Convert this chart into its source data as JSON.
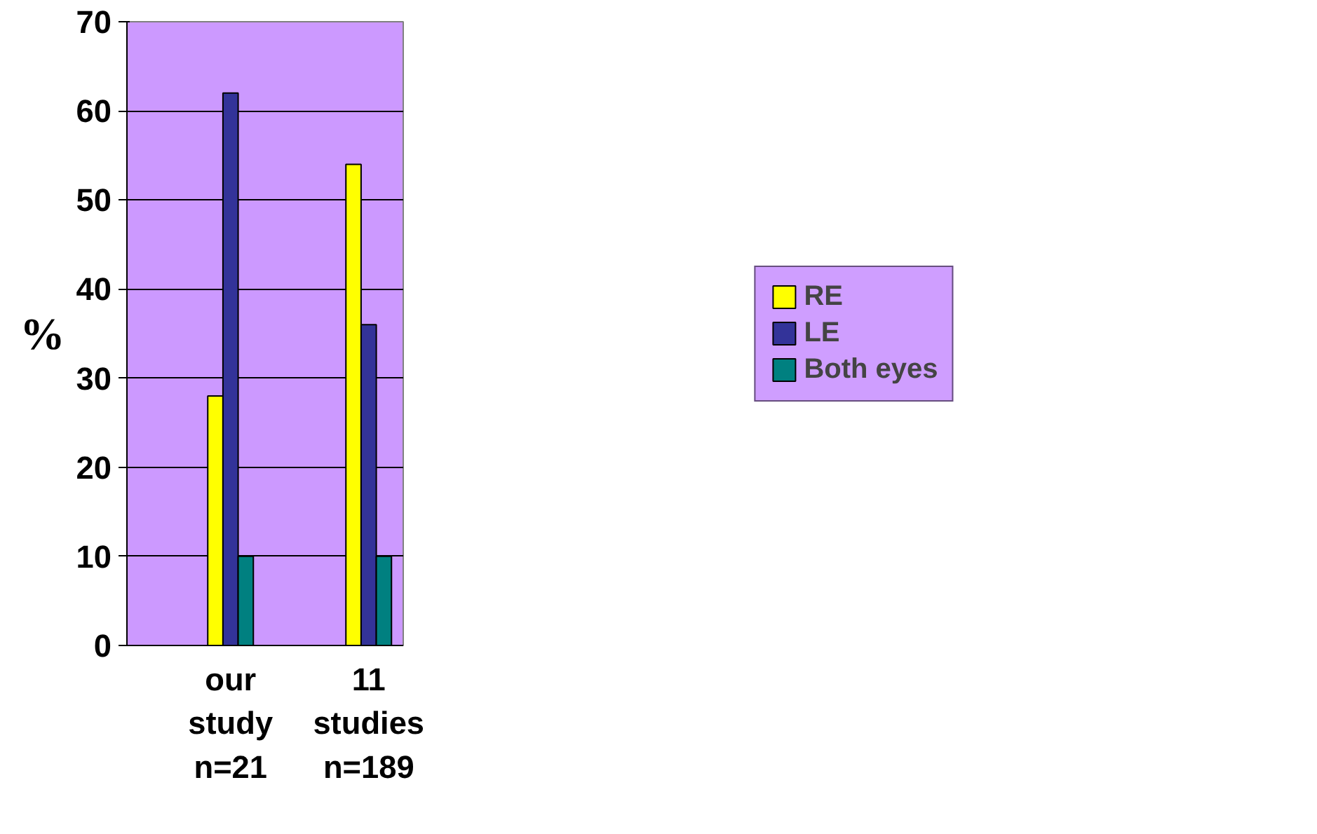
{
  "chart_data": {
    "type": "bar",
    "ylabel": "%",
    "categories": [
      null,
      "our\nstudy\nn=21",
      null,
      "11\nstudies\nn=189"
    ],
    "series": [
      {
        "name": "RE",
        "color": "#ffff00",
        "values": [
          null,
          28,
          null,
          54
        ]
      },
      {
        "name": "LE",
        "color": "#333399",
        "values": [
          null,
          62,
          null,
          36
        ]
      },
      {
        "name": "Both eyes",
        "color": "#008080",
        "values": [
          null,
          10,
          null,
          10
        ]
      }
    ],
    "ylim": [
      0,
      70
    ],
    "yticks": [
      0,
      10,
      20,
      30,
      40,
      50,
      60,
      70
    ],
    "grid": "y",
    "legend": "right"
  }
}
